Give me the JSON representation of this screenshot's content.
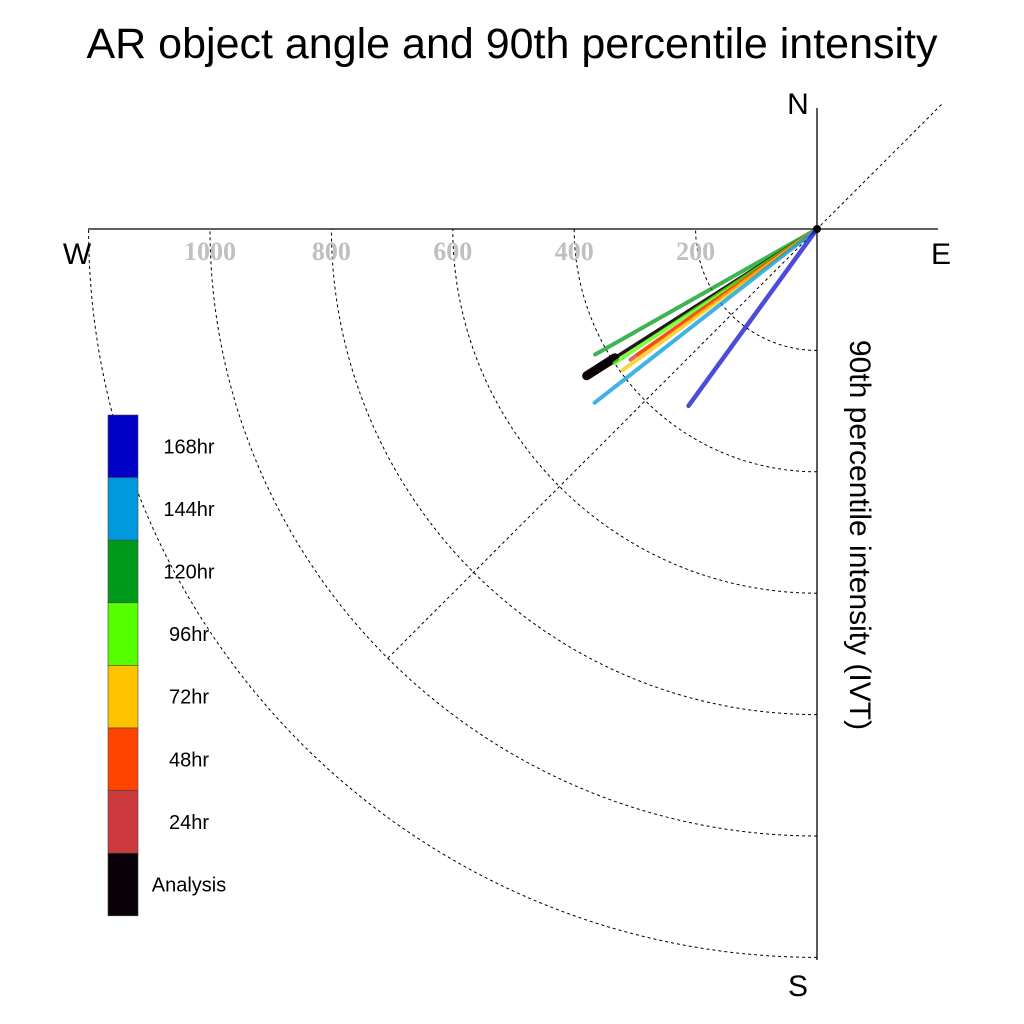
{
  "chart_data": {
    "type": "polar-vector",
    "title": "AR object angle and 90th percentile intensity",
    "ylabel": "90th percentile intensity (IVT)",
    "compass": {
      "north": "N",
      "south": "S",
      "east": "E",
      "west": "W"
    },
    "radial_ticks": [
      200,
      400,
      600,
      800,
      1000
    ],
    "radial_tick_labels": [
      "200",
      "400",
      "600",
      "800",
      "1000"
    ],
    "rmax": 1200,
    "series": [
      {
        "name": "120hr",
        "color": "#009a1a",
        "angle_deg": 240.5,
        "value": 420
      },
      {
        "name": "Analysis",
        "color": "#0a0008",
        "angle_deg": 237.5,
        "value": 450
      },
      {
        "name": "96hr",
        "color": "#55ff00",
        "angle_deg": 236.5,
        "value": 400
      },
      {
        "name": "24hr",
        "color": "#cc3a3e",
        "angle_deg": 235.0,
        "value": 375
      },
      {
        "name": "48hr",
        "color": "#ff4400",
        "angle_deg": 235.0,
        "value": 360
      },
      {
        "name": "72hr",
        "color": "#ffc400",
        "angle_deg": 234.0,
        "value": 395
      },
      {
        "name": "144hr",
        "color": "#0099dd",
        "angle_deg": 232.0,
        "value": 465
      },
      {
        "name": "168hr",
        "color": "#0000cc",
        "angle_deg": 216.0,
        "value": 360
      }
    ],
    "legend": [
      {
        "label": "168hr",
        "color": "#0000c8"
      },
      {
        "label": "144hr",
        "color": "#0099dd"
      },
      {
        "label": "120hr",
        "color": "#009a1a"
      },
      {
        "label": "96hr",
        "color": "#55ff00"
      },
      {
        "label": "72hr",
        "color": "#ffc400"
      },
      {
        "label": "48hr",
        "color": "#ff4400"
      },
      {
        "label": "24hr",
        "color": "#cc3a3e"
      },
      {
        "label": "Analysis",
        "color": "#0a0008"
      }
    ]
  }
}
